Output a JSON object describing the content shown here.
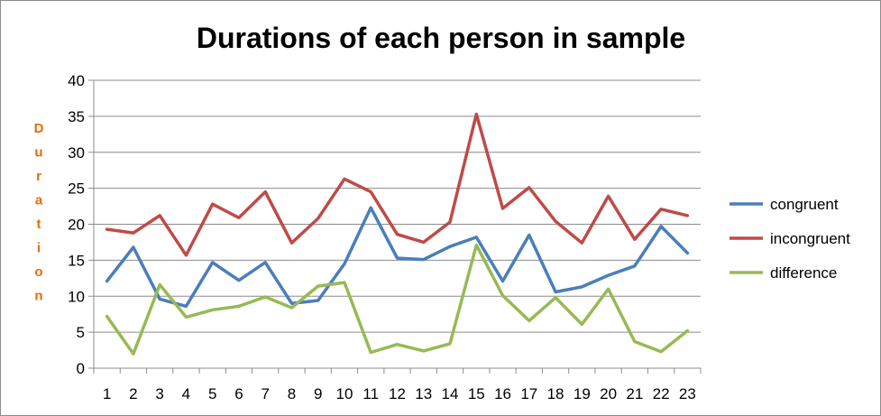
{
  "chart_data": {
    "type": "line",
    "title": "Durations of each person in sample",
    "xlabel": "",
    "ylabel": "Duration",
    "ylim": [
      0,
      40
    ],
    "yticks": [
      0,
      5,
      10,
      15,
      20,
      25,
      30,
      35,
      40
    ],
    "categories": [
      "1",
      "2",
      "3",
      "4",
      "5",
      "6",
      "7",
      "8",
      "9",
      "10",
      "11",
      "12",
      "13",
      "14",
      "15",
      "16",
      "17",
      "18",
      "19",
      "20",
      "21",
      "22",
      "23"
    ],
    "grid": true,
    "legend_position": "right",
    "series": [
      {
        "name": "congruent",
        "color": "#4a7ebb",
        "values": [
          12.1,
          16.8,
          9.6,
          8.6,
          14.7,
          12.2,
          14.7,
          9.0,
          9.4,
          14.5,
          22.3,
          15.3,
          15.1,
          16.9,
          18.2,
          12.1,
          18.5,
          10.6,
          11.3,
          12.9,
          14.2,
          19.7,
          16.0
        ]
      },
      {
        "name": "incongruent",
        "color": "#be4b48",
        "values": [
          19.3,
          18.8,
          21.2,
          15.7,
          22.8,
          20.9,
          24.5,
          17.4,
          20.8,
          26.3,
          24.5,
          18.6,
          17.5,
          20.3,
          35.3,
          22.2,
          25.1,
          20.4,
          17.4,
          23.9,
          17.9,
          22.1,
          21.2
        ]
      },
      {
        "name": "difference",
        "color": "#98b954",
        "values": [
          7.2,
          2.0,
          11.6,
          7.1,
          8.1,
          8.6,
          9.9,
          8.4,
          11.4,
          11.9,
          2.2,
          3.3,
          2.4,
          3.4,
          17.1,
          10.1,
          6.6,
          9.8,
          6.1,
          11.0,
          3.7,
          2.3,
          5.2
        ]
      }
    ]
  }
}
